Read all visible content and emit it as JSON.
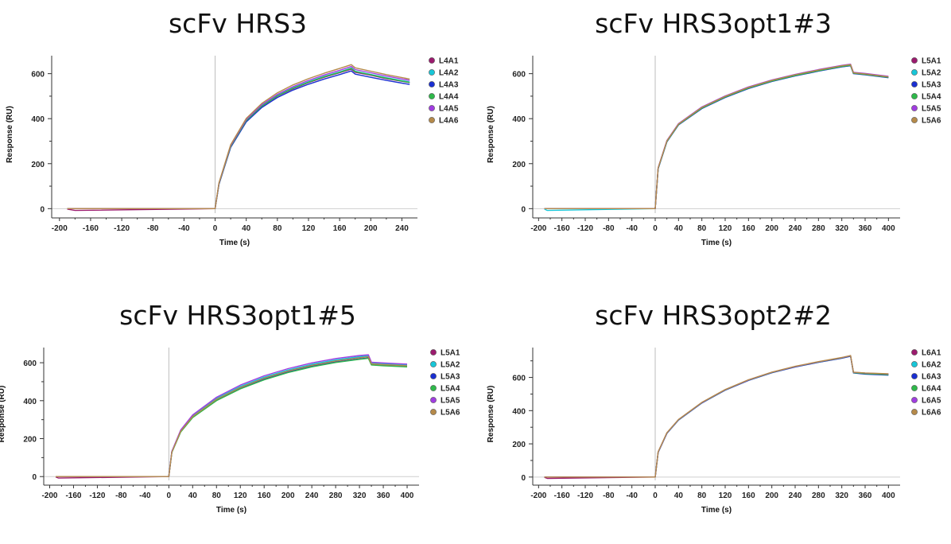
{
  "chart_data": [
    {
      "type": "line",
      "title": "scFv HRS3",
      "xlabel": "Time (s)",
      "ylabel": "Response (RU)",
      "xlim": [
        -210,
        260
      ],
      "ylim": [
        -20,
        680
      ],
      "x_ticks": [
        -200,
        -160,
        -120,
        -80,
        -40,
        0,
        40,
        80,
        120,
        160,
        200,
        240
      ],
      "y_ticks": [
        0,
        200,
        400,
        600
      ],
      "injection_start": 0,
      "legend_position": "right",
      "series": [
        {
          "name": "L4A1",
          "color": "#9b1b6e",
          "x": [
            -190,
            -180,
            0,
            5,
            20,
            40,
            60,
            80,
            100,
            120,
            140,
            160,
            175,
            180,
            200,
            220,
            250
          ],
          "y": [
            -2,
            -8,
            0,
            110,
            275,
            390,
            455,
            500,
            533,
            560,
            584,
            604,
            620,
            606,
            593,
            578,
            560
          ]
        },
        {
          "name": "L4A2",
          "color": "#18c6d8",
          "x": [
            -190,
            0,
            5,
            20,
            40,
            60,
            80,
            100,
            120,
            140,
            160,
            175,
            180,
            200,
            220,
            250
          ],
          "y": [
            0,
            0,
            112,
            278,
            393,
            458,
            503,
            537,
            564,
            588,
            608,
            625,
            611,
            597,
            582,
            563
          ]
        },
        {
          "name": "L4A3",
          "color": "#1a2fd1",
          "x": [
            -190,
            0,
            5,
            20,
            40,
            60,
            80,
            100,
            120,
            140,
            160,
            175,
            180,
            200,
            220,
            250
          ],
          "y": [
            0,
            0,
            108,
            272,
            386,
            450,
            494,
            527,
            553,
            576,
            596,
            612,
            598,
            584,
            570,
            552
          ]
        },
        {
          "name": "L4A4",
          "color": "#2fb84a",
          "x": [
            -190,
            0,
            5,
            20,
            40,
            60,
            80,
            100,
            120,
            140,
            160,
            175,
            180,
            200,
            220,
            250
          ],
          "y": [
            0,
            0,
            110,
            276,
            391,
            456,
            501,
            535,
            562,
            586,
            606,
            623,
            609,
            595,
            580,
            561
          ]
        },
        {
          "name": "L4A5",
          "color": "#a03de0",
          "x": [
            -190,
            0,
            5,
            20,
            40,
            60,
            80,
            100,
            120,
            140,
            160,
            175,
            180,
            200,
            220,
            250
          ],
          "y": [
            0,
            0,
            113,
            280,
            396,
            462,
            508,
            542,
            570,
            594,
            615,
            632,
            618,
            604,
            589,
            570
          ]
        },
        {
          "name": "L4A6",
          "color": "#b58a4a",
          "x": [
            -190,
            0,
            5,
            20,
            40,
            60,
            80,
            100,
            120,
            140,
            160,
            175,
            180,
            200,
            220,
            250
          ],
          "y": [
            0,
            0,
            115,
            284,
            401,
            468,
            515,
            550,
            578,
            602,
            623,
            640,
            626,
            611,
            596,
            576
          ]
        }
      ]
    },
    {
      "type": "line",
      "title": "scFv HRS3opt1#3",
      "xlabel": "Time (s)",
      "ylabel": "Response (RU)",
      "xlim": [
        -210,
        420
      ],
      "ylim": [
        -20,
        680
      ],
      "x_ticks": [
        -200,
        -160,
        -120,
        -80,
        -40,
        0,
        40,
        80,
        120,
        160,
        200,
        240,
        280,
        320,
        360,
        400
      ],
      "y_ticks": [
        0,
        200,
        400,
        600
      ],
      "injection_start": 0,
      "legend_position": "right",
      "series": [
        {
          "name": "L5A1",
          "color": "#9b1b6e",
          "x": [
            -190,
            0,
            5,
            20,
            40,
            80,
            120,
            160,
            200,
            240,
            280,
            320,
            335,
            340,
            360,
            400
          ],
          "y": [
            0,
            0,
            180,
            300,
            375,
            448,
            497,
            537,
            568,
            593,
            614,
            633,
            638,
            603,
            598,
            585
          ]
        },
        {
          "name": "L5A2",
          "color": "#18c6d8",
          "x": [
            -190,
            -185,
            0,
            5,
            20,
            40,
            80,
            120,
            160,
            200,
            240,
            280,
            320,
            335,
            340,
            360,
            400
          ],
          "y": [
            -2,
            -8,
            0,
            178,
            298,
            373,
            446,
            495,
            535,
            566,
            591,
            612,
            631,
            636,
            601,
            596,
            583
          ]
        },
        {
          "name": "L5A3",
          "color": "#1a2fd1",
          "x": [
            -190,
            0,
            5,
            20,
            40,
            80,
            120,
            160,
            200,
            240,
            280,
            320,
            335,
            340,
            360,
            400
          ],
          "y": [
            0,
            0,
            177,
            297,
            372,
            445,
            494,
            534,
            565,
            590,
            611,
            630,
            635,
            600,
            595,
            582
          ]
        },
        {
          "name": "L5A4",
          "color": "#2fb84a",
          "x": [
            -190,
            0,
            5,
            20,
            40,
            80,
            120,
            160,
            200,
            240,
            280,
            320,
            335,
            340,
            360,
            400
          ],
          "y": [
            0,
            0,
            179,
            299,
            374,
            447,
            496,
            536,
            567,
            592,
            613,
            632,
            637,
            602,
            597,
            584
          ]
        },
        {
          "name": "L5A5",
          "color": "#a03de0",
          "x": [
            -190,
            0,
            5,
            20,
            40,
            80,
            120,
            160,
            200,
            240,
            280,
            320,
            335,
            340,
            360,
            400
          ],
          "y": [
            0,
            0,
            182,
            303,
            378,
            452,
            501,
            541,
            572,
            597,
            618,
            637,
            642,
            606,
            601,
            588
          ]
        },
        {
          "name": "L5A6",
          "color": "#b58a4a",
          "x": [
            -190,
            0,
            5,
            20,
            40,
            80,
            120,
            160,
            200,
            240,
            280,
            320,
            335,
            340,
            360,
            400
          ],
          "y": [
            0,
            0,
            181,
            301,
            376,
            450,
            499,
            539,
            570,
            595,
            616,
            635,
            640,
            604,
            599,
            586
          ]
        }
      ]
    },
    {
      "type": "line",
      "title": "scFv HRS3opt1#5",
      "xlabel": "Time (s)",
      "ylabel": "Response (RU)",
      "xlim": [
        -210,
        420
      ],
      "ylim": [
        -20,
        680
      ],
      "x_ticks": [
        -200,
        -160,
        -120,
        -80,
        -40,
        0,
        40,
        80,
        120,
        160,
        200,
        240,
        280,
        320,
        360,
        400
      ],
      "y_ticks": [
        0,
        200,
        400,
        600
      ],
      "injection_start": 0,
      "legend_position": "right",
      "series": [
        {
          "name": "L5A1",
          "color": "#9b1b6e",
          "x": [
            -190,
            -185,
            0,
            5,
            20,
            40,
            80,
            120,
            160,
            200,
            240,
            280,
            320,
            335,
            340,
            360,
            400
          ],
          "y": [
            -2,
            -8,
            0,
            130,
            240,
            318,
            410,
            473,
            522,
            560,
            590,
            613,
            630,
            636,
            596,
            592,
            586
          ]
        },
        {
          "name": "L5A2",
          "color": "#18c6d8",
          "x": [
            -190,
            0,
            5,
            20,
            40,
            80,
            120,
            160,
            200,
            240,
            280,
            320,
            335,
            340,
            360,
            400
          ],
          "y": [
            0,
            0,
            131,
            242,
            320,
            412,
            475,
            524,
            562,
            592,
            615,
            632,
            637,
            598,
            594,
            588
          ]
        },
        {
          "name": "L5A3",
          "color": "#1a2fd1",
          "x": [
            -190,
            0,
            5,
            20,
            40,
            80,
            120,
            160,
            200,
            240,
            280,
            320,
            335,
            340,
            360,
            400
          ],
          "y": [
            0,
            0,
            128,
            237,
            313,
            403,
            465,
            513,
            551,
            581,
            604,
            620,
            625,
            590,
            586,
            580
          ]
        },
        {
          "name": "L5A4",
          "color": "#2fb84a",
          "x": [
            -190,
            0,
            5,
            20,
            40,
            80,
            120,
            160,
            200,
            240,
            280,
            320,
            335,
            340,
            360,
            400
          ],
          "y": [
            0,
            0,
            127,
            235,
            311,
            400,
            462,
            510,
            548,
            578,
            601,
            618,
            623,
            588,
            584,
            578
          ]
        },
        {
          "name": "L5A5",
          "color": "#a03de0",
          "x": [
            -190,
            0,
            5,
            20,
            40,
            80,
            120,
            160,
            200,
            240,
            280,
            320,
            335,
            340,
            360,
            400
          ],
          "y": [
            0,
            0,
            133,
            246,
            325,
            418,
            482,
            531,
            569,
            599,
            622,
            638,
            642,
            603,
            599,
            593
          ]
        },
        {
          "name": "L5A6",
          "color": "#b58a4a",
          "x": [
            -190,
            0,
            5,
            20,
            40,
            80,
            120,
            160,
            200,
            240,
            280,
            320,
            335,
            340,
            360,
            400
          ],
          "y": [
            0,
            0,
            129,
            239,
            316,
            407,
            469,
            518,
            556,
            586,
            609,
            626,
            631,
            594,
            590,
            584
          ]
        }
      ]
    },
    {
      "type": "line",
      "title": "scFv HRS3opt2#2",
      "xlabel": "Time (s)",
      "ylabel": "Response (RU)",
      "xlim": [
        -210,
        420
      ],
      "ylim": [
        -20,
        780
      ],
      "x_ticks": [
        -200,
        -160,
        -120,
        -80,
        -40,
        0,
        40,
        80,
        120,
        160,
        200,
        240,
        280,
        320,
        360,
        400
      ],
      "y_ticks": [
        0,
        200,
        400,
        600
      ],
      "injection_start": 0,
      "legend_position": "right",
      "series": [
        {
          "name": "L6A1",
          "color": "#9b1b6e",
          "x": [
            -190,
            -185,
            0,
            5,
            20,
            40,
            80,
            120,
            160,
            200,
            240,
            280,
            320,
            335,
            340,
            360,
            400
          ],
          "y": [
            -2,
            -8,
            0,
            150,
            265,
            345,
            448,
            525,
            584,
            630,
            665,
            693,
            718,
            730,
            630,
            625,
            620
          ]
        },
        {
          "name": "L6A2",
          "color": "#18c6d8",
          "x": [
            -190,
            0,
            5,
            20,
            40,
            80,
            120,
            160,
            200,
            240,
            280,
            320,
            335,
            340,
            360,
            400
          ],
          "y": [
            0,
            0,
            149,
            264,
            344,
            447,
            524,
            583,
            629,
            664,
            692,
            717,
            729,
            628,
            622,
            616
          ]
        },
        {
          "name": "L6A3",
          "color": "#1a2fd1",
          "x": [
            -190,
            0,
            5,
            20,
            40,
            80,
            120,
            160,
            200,
            240,
            280,
            320,
            335,
            340,
            360,
            400
          ],
          "y": [
            0,
            0,
            148,
            263,
            343,
            446,
            523,
            582,
            628,
            663,
            691,
            716,
            728,
            627,
            620,
            614
          ]
        },
        {
          "name": "L6A4",
          "color": "#2fb84a",
          "x": [
            -190,
            0,
            5,
            20,
            40,
            80,
            120,
            160,
            200,
            240,
            280,
            320,
            335,
            340,
            360,
            400
          ],
          "y": [
            0,
            0,
            150,
            265,
            345,
            448,
            525,
            584,
            630,
            665,
            693,
            718,
            730,
            629,
            623,
            617
          ]
        },
        {
          "name": "L6A5",
          "color": "#a03de0",
          "x": [
            -190,
            0,
            5,
            20,
            40,
            80,
            120,
            160,
            200,
            240,
            280,
            320,
            335,
            340,
            360,
            400
          ],
          "y": [
            0,
            0,
            151,
            266,
            346,
            449,
            526,
            585,
            631,
            666,
            694,
            719,
            731,
            631,
            626,
            621
          ]
        },
        {
          "name": "L6A6",
          "color": "#b58a4a",
          "x": [
            -190,
            0,
            5,
            20,
            40,
            80,
            120,
            160,
            200,
            240,
            280,
            320,
            335,
            340,
            360,
            400
          ],
          "y": [
            0,
            0,
            152,
            267,
            347,
            450,
            527,
            586,
            632,
            667,
            695,
            720,
            732,
            632,
            627,
            622
          ]
        }
      ]
    }
  ]
}
